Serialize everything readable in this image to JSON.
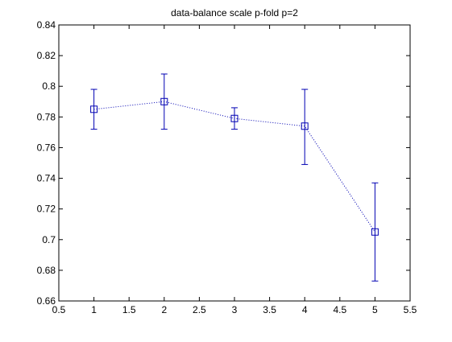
{
  "chart_data": {
    "type": "line",
    "title": "data-balance scale  p-fold p=2",
    "xlabel": "",
    "ylabel": "",
    "xlim": [
      0.5,
      5.5
    ],
    "ylim": [
      0.66,
      0.84
    ],
    "xticks": [
      0.5,
      1,
      1.5,
      2,
      2.5,
      3,
      3.5,
      4,
      4.5,
      5,
      5.5
    ],
    "xtick_labels": [
      "0.5",
      "1",
      "1.5",
      "2",
      "2.5",
      "3",
      "3.5",
      "4",
      "4.5",
      "5",
      "5.5"
    ],
    "yticks": [
      0.66,
      0.68,
      0.7,
      0.72,
      0.74,
      0.76,
      0.78,
      0.8,
      0.82,
      0.84
    ],
    "ytick_labels": [
      "0.66",
      "0.68",
      "0.7",
      "0.72",
      "0.74",
      "0.76",
      "0.78",
      "0.8",
      "0.82",
      "0.84"
    ],
    "grid": false,
    "series": [
      {
        "x": [
          1,
          2,
          3,
          4,
          5
        ],
        "y": [
          0.785,
          0.79,
          0.779,
          0.774,
          0.705
        ],
        "err_low": [
          0.772,
          0.772,
          0.772,
          0.749,
          0.673
        ],
        "err_high": [
          0.798,
          0.808,
          0.786,
          0.798,
          0.737
        ],
        "color": "#0000b3",
        "line_style": "dotted",
        "marker": "square"
      }
    ]
  }
}
